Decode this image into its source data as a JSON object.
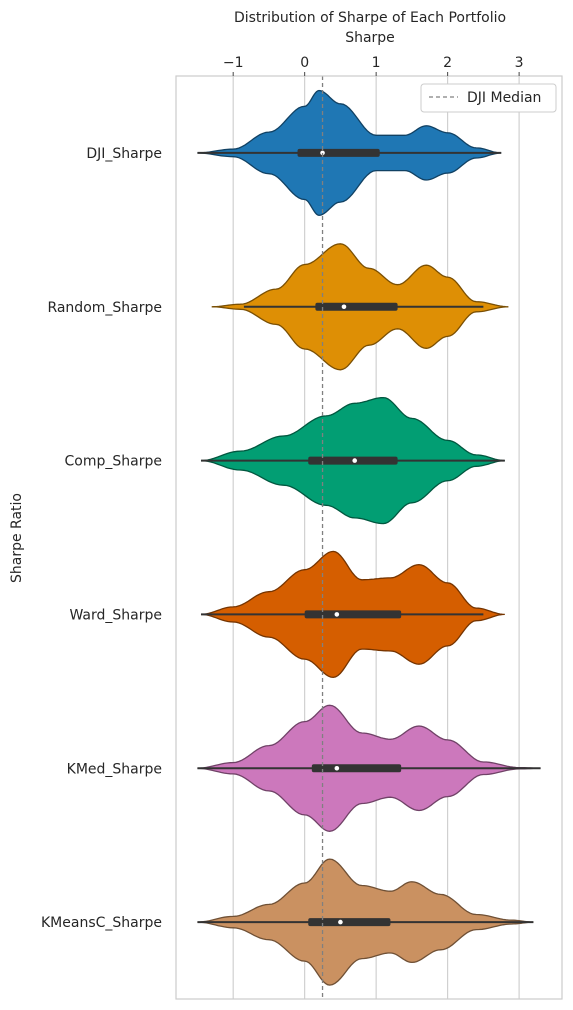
{
  "chart_data": {
    "type": "violin",
    "title": "Distribution of Sharpe of Each Portfolio",
    "xlabel": "Sharpe",
    "ylabel": "Sharpe Ratio",
    "xlim": [
      -1.8,
      3.6
    ],
    "xticks": [
      -1,
      0,
      1,
      2,
      3
    ],
    "xtick_labels": [
      "−1",
      "0",
      "1",
      "2",
      "3"
    ],
    "grid": true,
    "legend_position": "top-right",
    "reference_line": {
      "label": "DJI Median",
      "value": 0.25,
      "style": "dashed",
      "color": "#808080"
    },
    "categories": [
      "DJI_Sharpe",
      "Random_Sharpe",
      "Comp_Sharpe",
      "Ward_Sharpe",
      "KMed_Sharpe",
      "KMeansC_Sharpe"
    ],
    "series": [
      {
        "name": "DJI_Sharpe",
        "color": "#1f77b4",
        "summary": {
          "min": -1.5,
          "q1": -0.1,
          "median": 0.25,
          "q3": 1.05,
          "max": 2.75
        },
        "density": [
          [
            -1.5,
            0.0
          ],
          [
            -1.0,
            0.06
          ],
          [
            -0.5,
            0.33
          ],
          [
            0.0,
            0.74
          ],
          [
            0.2,
            0.99
          ],
          [
            0.5,
            0.78
          ],
          [
            1.0,
            0.28
          ],
          [
            1.4,
            0.28
          ],
          [
            1.7,
            0.43
          ],
          [
            2.0,
            0.32
          ],
          [
            2.4,
            0.08
          ],
          [
            2.75,
            0.0
          ]
        ]
      },
      {
        "name": "Random_Sharpe",
        "color": "#de8f05",
        "summary": {
          "min": -0.85,
          "q1": 0.15,
          "median": 0.55,
          "q3": 1.3,
          "max": 2.5
        },
        "density": [
          [
            -1.3,
            0.0
          ],
          [
            -0.9,
            0.04
          ],
          [
            -0.4,
            0.28
          ],
          [
            0.0,
            0.67
          ],
          [
            0.5,
            1.0
          ],
          [
            0.9,
            0.61
          ],
          [
            1.3,
            0.35
          ],
          [
            1.7,
            0.66
          ],
          [
            2.0,
            0.47
          ],
          [
            2.4,
            0.08
          ],
          [
            2.85,
            0.0
          ]
        ]
      },
      {
        "name": "Comp_Sharpe",
        "color": "#029e73",
        "summary": {
          "min": -1.45,
          "q1": 0.05,
          "median": 0.7,
          "q3": 1.3,
          "max": 2.8
        },
        "density": [
          [
            -1.45,
            0.0
          ],
          [
            -0.9,
            0.15
          ],
          [
            -0.3,
            0.39
          ],
          [
            0.3,
            0.71
          ],
          [
            0.7,
            0.91
          ],
          [
            1.1,
            1.0
          ],
          [
            1.5,
            0.67
          ],
          [
            2.0,
            0.32
          ],
          [
            2.4,
            0.09
          ],
          [
            2.8,
            0.0
          ]
        ]
      },
      {
        "name": "Ward_Sharpe",
        "color": "#d55e00",
        "summary": {
          "min": -1.45,
          "q1": 0.0,
          "median": 0.45,
          "q3": 1.35,
          "max": 2.5
        },
        "density": [
          [
            -1.45,
            0.0
          ],
          [
            -1.0,
            0.12
          ],
          [
            -0.5,
            0.36
          ],
          [
            0.0,
            0.71
          ],
          [
            0.4,
            1.0
          ],
          [
            0.8,
            0.55
          ],
          [
            1.2,
            0.58
          ],
          [
            1.6,
            0.79
          ],
          [
            2.0,
            0.5
          ],
          [
            2.4,
            0.1
          ],
          [
            2.8,
            0.0
          ]
        ]
      },
      {
        "name": "KMed_Sharpe",
        "color": "#cc78bc",
        "summary": {
          "min": -1.5,
          "q1": 0.1,
          "median": 0.45,
          "q3": 1.35,
          "max": 3.3
        },
        "density": [
          [
            -1.5,
            0.0
          ],
          [
            -1.0,
            0.09
          ],
          [
            -0.5,
            0.36
          ],
          [
            0.0,
            0.74
          ],
          [
            0.35,
            1.0
          ],
          [
            0.8,
            0.56
          ],
          [
            1.2,
            0.46
          ],
          [
            1.6,
            0.67
          ],
          [
            2.0,
            0.45
          ],
          [
            2.5,
            0.1
          ],
          [
            3.0,
            0.01
          ],
          [
            3.3,
            0.0
          ]
        ]
      },
      {
        "name": "KMeansC_Sharpe",
        "color": "#ca9161",
        "summary": {
          "min": -1.5,
          "q1": 0.05,
          "median": 0.5,
          "q3": 1.2,
          "max": 3.2
        },
        "density": [
          [
            -1.5,
            0.0
          ],
          [
            -1.0,
            0.09
          ],
          [
            -0.5,
            0.28
          ],
          [
            0.0,
            0.62
          ],
          [
            0.35,
            1.0
          ],
          [
            0.8,
            0.58
          ],
          [
            1.2,
            0.49
          ],
          [
            1.5,
            0.64
          ],
          [
            1.9,
            0.44
          ],
          [
            2.4,
            0.12
          ],
          [
            2.9,
            0.03
          ],
          [
            3.2,
            0.0
          ]
        ]
      }
    ]
  }
}
